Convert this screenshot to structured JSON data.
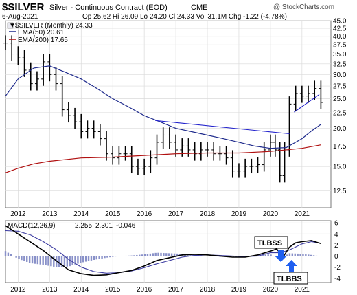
{
  "header": {
    "symbol": "$SILVER",
    "name": "Silver - Continuous Contract (EOD)",
    "exchange": "CME",
    "date": "6-Aug-2021",
    "quote": "Op 25.62  Hi 26.09  Lo 24.20  Cl 24.33  Vol 31.1M  Chg -1.22 (-4.78%)",
    "watermark": "@ StockCharts.com",
    "down_arrow": "▼"
  },
  "legend": {
    "price": "$SILVER (Monthly) 24.33",
    "ema50": "EMA(50) 20.61",
    "ema200": "EMA(200) 17.65"
  },
  "macd_legend": {
    "name": "MACD(12,26,9)",
    "macd": "2.255",
    "signal": "2.301",
    "hist": "-0.046"
  },
  "annotations": {
    "tlbss": "TLBSS",
    "tlbbs": "TLBBS"
  },
  "colors": {
    "price": "#000000",
    "ema50": "#1e2a8c",
    "ema200": "#b01010",
    "trendline": "#2222cc",
    "macd": "#000000",
    "signal": "#3a3aa0",
    "histogram": "#8890c8",
    "arrow": "#1e5ef0"
  },
  "chart_data": [
    {
      "type": "line",
      "panel": "price",
      "x_tick_labels": [
        "2012",
        "2013",
        "2014",
        "2015",
        "2016",
        "2017",
        "2018",
        "2019",
        "2020",
        "2021"
      ],
      "y_tick_labels": [
        "45.0",
        "42.5",
        "40.0",
        "37.5",
        "35.0",
        "32.5",
        "30.0",
        "27.5",
        "25.0",
        "22.5",
        "20.0",
        "17.5",
        "15.0",
        "12.5"
      ],
      "y_ticks": [
        45,
        42.5,
        40,
        37.5,
        35,
        32.5,
        30,
        27.5,
        25,
        22.5,
        20,
        17.5,
        15,
        12.5
      ],
      "ylim": [
        11,
        45
      ],
      "y_scale": "log",
      "x_range": [
        2011.6,
        2021.7
      ],
      "series": [
        {
          "name": "$SILVER (Monthly)",
          "x": [
            2011.6,
            2011.8,
            2012.0,
            2012.2,
            2012.4,
            2012.6,
            2012.8,
            2013.0,
            2013.2,
            2013.4,
            2013.6,
            2013.8,
            2014.0,
            2014.2,
            2014.4,
            2014.6,
            2014.8,
            2015.0,
            2015.2,
            2015.4,
            2015.6,
            2015.8,
            2016.0,
            2016.2,
            2016.4,
            2016.6,
            2016.8,
            2017.0,
            2017.2,
            2017.4,
            2017.6,
            2017.8,
            2018.0,
            2018.2,
            2018.4,
            2018.6,
            2018.8,
            2019.0,
            2019.2,
            2019.4,
            2019.6,
            2019.8,
            2020.0,
            2020.15,
            2020.3,
            2020.45,
            2020.6,
            2020.8,
            2021.0,
            2021.2,
            2021.4,
            2021.6
          ],
          "y": [
            38,
            35,
            34,
            31,
            28,
            29,
            33,
            30,
            28,
            23,
            22,
            21,
            19.5,
            20,
            19.5,
            18.5,
            16.5,
            16,
            16.5,
            16.5,
            15,
            14.8,
            15,
            16,
            18,
            19,
            18,
            17,
            17.5,
            17,
            16.5,
            17,
            17,
            16.5,
            16.5,
            16,
            14.5,
            14.5,
            15,
            15,
            15.2,
            17,
            18,
            17,
            14,
            17,
            24,
            26,
            25.5,
            26,
            27,
            24.3
          ]
        },
        {
          "name": "EMA(50)",
          "x": [
            2011.6,
            2012.0,
            2012.5,
            2013.0,
            2013.5,
            2014.0,
            2014.5,
            2015.0,
            2015.5,
            2016.0,
            2016.5,
            2017.0,
            2017.5,
            2018.0,
            2018.5,
            2019.0,
            2019.5,
            2020.0,
            2020.5,
            2021.0,
            2021.3,
            2021.6
          ],
          "y": [
            25.5,
            29,
            31.5,
            32,
            30.5,
            29,
            27,
            25,
            23.5,
            22,
            21,
            20,
            19.5,
            19,
            18.5,
            18,
            17.5,
            17.2,
            17.3,
            18.5,
            19.6,
            20.6
          ]
        },
        {
          "name": "EMA(200)",
          "x": [
            2011.6,
            2012.0,
            2012.5,
            2013.0,
            2014.0,
            2015.0,
            2016.0,
            2017.0,
            2018.0,
            2019.0,
            2020.0,
            2021.0,
            2021.6
          ],
          "y": [
            14.3,
            14.8,
            15.3,
            15.6,
            16.0,
            16.1,
            16.3,
            16.5,
            16.6,
            16.6,
            16.8,
            17.2,
            17.65
          ]
        },
        {
          "name": "Trendline 2016-2020",
          "x": [
            2016.35,
            2020.6
          ],
          "y": [
            21.2,
            19.2
          ]
        },
        {
          "name": "Trendline 2020-2021",
          "x": [
            2020.75,
            2021.55
          ],
          "y": [
            22.6,
            25.8
          ]
        }
      ]
    },
    {
      "type": "line",
      "panel": "macd",
      "x_tick_labels": [
        "2012",
        "2013",
        "2014",
        "2015",
        "2016",
        "2017",
        "2018",
        "2019",
        "2020",
        "2021"
      ],
      "y_tick_labels": [
        "6",
        "4",
        "2",
        "0",
        "-2",
        "-4"
      ],
      "y_ticks": [
        6,
        4,
        2,
        0,
        -2,
        -4
      ],
      "ylim": [
        -4.8,
        6.4
      ],
      "x_range": [
        2011.6,
        2021.7
      ],
      "series": [
        {
          "name": "MACD",
          "x": [
            2011.6,
            2012.0,
            2012.4,
            2012.8,
            2013.2,
            2013.6,
            2014.0,
            2014.4,
            2014.8,
            2015.2,
            2015.6,
            2016.0,
            2016.4,
            2016.8,
            2017.2,
            2017.6,
            2018.0,
            2018.4,
            2018.8,
            2019.2,
            2019.6,
            2020.0,
            2020.2,
            2020.4,
            2020.6,
            2020.8,
            2021.0,
            2021.3,
            2021.6
          ],
          "y": [
            5.5,
            4.0,
            2.5,
            1.0,
            -0.8,
            -2.5,
            -3.2,
            -3.5,
            -3.4,
            -3.0,
            -2.6,
            -1.8,
            -0.8,
            -0.3,
            0.2,
            0.3,
            0.2,
            0.0,
            -0.2,
            -0.2,
            0.2,
            0.9,
            1.3,
            -0.2,
            1.6,
            2.4,
            2.6,
            2.8,
            2.26
          ]
        },
        {
          "name": "Signal",
          "x": [
            2011.6,
            2012.0,
            2012.4,
            2012.8,
            2013.2,
            2013.6,
            2014.0,
            2014.4,
            2014.8,
            2015.2,
            2015.6,
            2016.0,
            2016.4,
            2016.8,
            2017.2,
            2017.6,
            2018.0,
            2018.4,
            2018.8,
            2019.2,
            2019.6,
            2020.0,
            2020.3,
            2020.6,
            2021.0,
            2021.3,
            2021.6
          ],
          "y": [
            4.6,
            4.5,
            3.8,
            2.6,
            1.2,
            -0.6,
            -2.0,
            -2.8,
            -3.1,
            -3.0,
            -2.7,
            -2.1,
            -1.4,
            -0.8,
            -0.2,
            0.1,
            0.2,
            0.1,
            0.0,
            -0.1,
            0.0,
            0.6,
            0.6,
            1.1,
            2.2,
            2.6,
            2.3
          ]
        },
        {
          "name": "Histogram",
          "x": [
            2011.6,
            2012.0,
            2012.4,
            2012.8,
            2013.2,
            2013.6,
            2014.0,
            2014.4,
            2014.8,
            2015.2,
            2015.6,
            2016.0,
            2016.4,
            2016.8,
            2017.2,
            2017.6,
            2018.0,
            2018.4,
            2018.8,
            2019.2,
            2019.6,
            2020.0,
            2020.3,
            2020.6,
            2021.0,
            2021.3,
            2021.6
          ],
          "y": [
            0.9,
            -0.5,
            -1.3,
            -1.6,
            -2.0,
            -1.9,
            -1.2,
            -0.7,
            -0.3,
            0.0,
            0.1,
            0.3,
            0.6,
            0.5,
            0.4,
            0.2,
            0.0,
            -0.1,
            -0.2,
            -0.1,
            0.2,
            0.3,
            -0.5,
            0.5,
            0.4,
            0.2,
            -0.05
          ]
        }
      ]
    }
  ]
}
